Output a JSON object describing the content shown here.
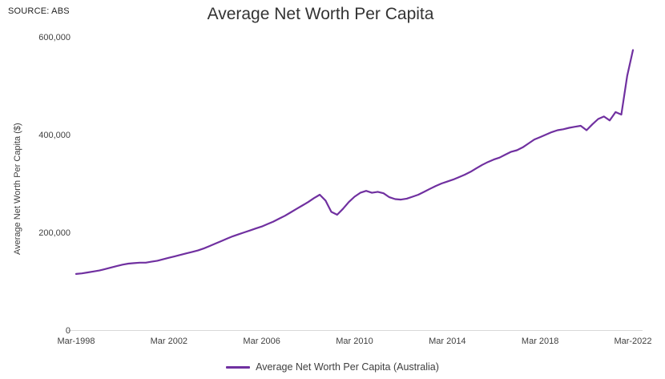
{
  "source": "SOURCE: ABS",
  "title": "Average Net Worth Per Capita",
  "y_axis_label": "Average Net Worth Per Capita ($)",
  "legend": {
    "label": "Average Net Worth Per Capita (Australia)",
    "color": "#7030A0"
  },
  "chart_data": {
    "type": "line",
    "title": "Average Net Worth Per Capita",
    "xlabel": "",
    "ylabel": "Average Net Worth Per Capita ($)",
    "ylim": [
      0,
      600000
    ],
    "grid": "off",
    "legend_position": "bottom",
    "y_ticks": [
      {
        "value": 0,
        "label": "0"
      },
      {
        "value": 200000,
        "label": "200,000"
      },
      {
        "value": 400000,
        "label": "400,000"
      },
      {
        "value": 600000,
        "label": "600,000"
      }
    ],
    "x_tick_labels": [
      "Mar-1998",
      "Mar 2002",
      "Mar 2006",
      "Mar 2010",
      "Mar 2014",
      "Mar 2018",
      "Mar-2022"
    ],
    "x_range": [
      "Mar-1998",
      "Mar-2022"
    ],
    "frequency": "quarterly",
    "series": [
      {
        "name": "Average Net Worth Per Capita (Australia)",
        "color": "#7030A0",
        "values": [
          115000,
          116000,
          118000,
          120000,
          122000,
          125000,
          128000,
          131000,
          134000,
          136000,
          137000,
          138000,
          138000,
          140000,
          142000,
          145000,
          148000,
          151000,
          154000,
          157000,
          160000,
          163000,
          167000,
          172000,
          177000,
          182000,
          187000,
          192000,
          196000,
          200000,
          204000,
          208000,
          212000,
          217000,
          222000,
          228000,
          234000,
          241000,
          248000,
          255000,
          262000,
          270000,
          277000,
          265000,
          242000,
          236000,
          248000,
          262000,
          273000,
          281000,
          285000,
          281000,
          283000,
          280000,
          272000,
          268000,
          267000,
          269000,
          273000,
          277000,
          283000,
          289000,
          295000,
          300000,
          304000,
          308000,
          313000,
          318000,
          324000,
          331000,
          338000,
          344000,
          349000,
          353000,
          359000,
          365000,
          368000,
          374000,
          382000,
          390000,
          395000,
          400000,
          405000,
          409000,
          411000,
          414000,
          416000,
          418000,
          409000,
          421000,
          432000,
          437000,
          429000,
          446000,
          441000,
          520000,
          573000
        ]
      }
    ]
  }
}
